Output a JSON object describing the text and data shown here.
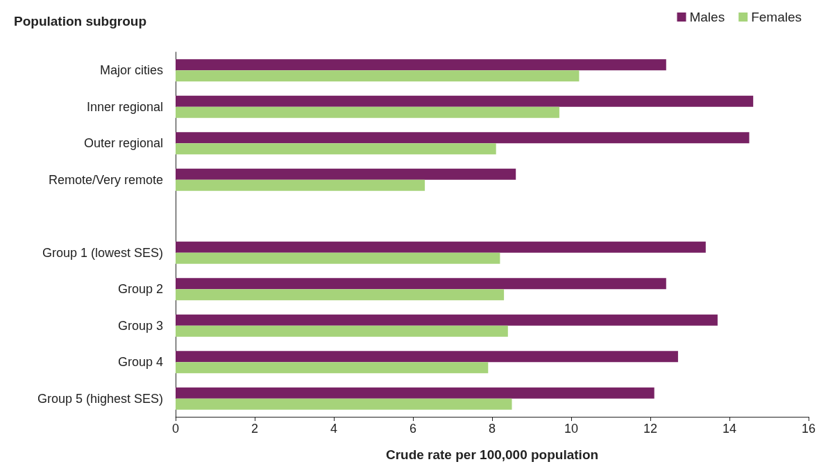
{
  "chart_data": {
    "type": "bar",
    "orientation": "horizontal",
    "ylabel": "Population subgroup",
    "xlabel": "Crude rate per 100,000 population",
    "categories": [
      "Major cities",
      "Inner regional",
      "Outer regional",
      "Remote/Very remote",
      null,
      "Group 1 (lowest SES)",
      "Group 2",
      "Group 3",
      "Group 4",
      "Group 5 (highest SES)"
    ],
    "series": [
      {
        "name": "Males",
        "color": "#772163",
        "values": [
          12.4,
          14.6,
          14.5,
          8.6,
          null,
          13.4,
          12.4,
          13.7,
          12.7,
          12.1
        ]
      },
      {
        "name": "Females",
        "color": "#a6d37a",
        "values": [
          10.2,
          9.7,
          8.1,
          6.3,
          null,
          8.2,
          8.3,
          8.4,
          7.9,
          8.5
        ]
      }
    ],
    "xlim": [
      0,
      16
    ],
    "xticks": [
      0,
      2,
      4,
      6,
      8,
      10,
      12,
      14,
      16
    ],
    "grid": false,
    "legend": "top right"
  }
}
